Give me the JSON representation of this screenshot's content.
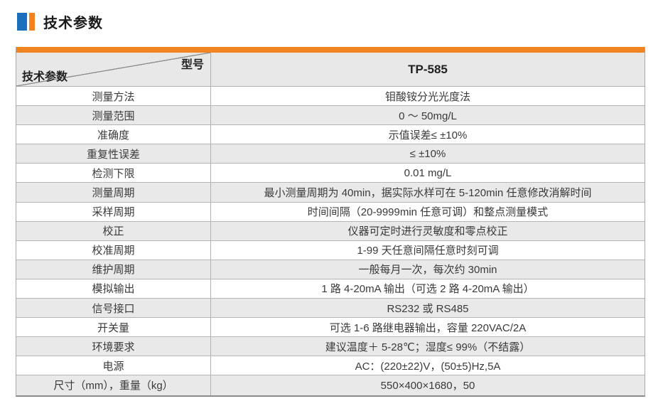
{
  "section": {
    "title": "技术参数",
    "accent_blue": "#1c6fb8",
    "accent_orange": "#f18421"
  },
  "table": {
    "corner": {
      "top_right_label": "型号",
      "bottom_left_label": "技术参数"
    },
    "model_header": "TP-585",
    "colors": {
      "top_bar": "#f18421",
      "header_bg": "#e8e8e8",
      "alt_row_bg": "#e9e9e9",
      "border": "#b0b0b0"
    },
    "rows": [
      {
        "label": "测量方法",
        "value": "钼酸铵分光光度法"
      },
      {
        "label": "测量范围",
        "value": "0 ～ 50mg/L"
      },
      {
        "label": "准确度",
        "value": "示值误差≤ ±10%"
      },
      {
        "label": "重复性误差",
        "value": "≤ ±10%"
      },
      {
        "label": "检测下限",
        "value": "0.01 mg/L"
      },
      {
        "label": "测量周期",
        "value": "最小测量周期为 40min，据实际水样可在 5-120min 任意修改消解时间"
      },
      {
        "label": "采样周期",
        "value": "时间间隔（20-9999min 任意可调）和整点测量模式"
      },
      {
        "label": "校正",
        "value": "仪器可定时进行灵敏度和零点校正"
      },
      {
        "label": "校准周期",
        "value": "1-99 天任意间隔任意时刻可调"
      },
      {
        "label": "维护周期",
        "value": "一般每月一次，每次约 30min"
      },
      {
        "label": "模拟输出",
        "value": "1 路 4-20mA 输出（可选 2 路 4-20mA 输出）"
      },
      {
        "label": "信号接口",
        "value": "RS232 或 RS485"
      },
      {
        "label": "开关量",
        "value": "可选 1-6 路继电器输出，容量 220VAC/2A"
      },
      {
        "label": "环境要求",
        "value": "建议温度＋ 5-28℃；湿度≤ 99%（不结露）"
      },
      {
        "label": "电源",
        "value": "AC：(220±22)V，(50±5)Hz,5A"
      },
      {
        "label": "尺寸（mm），重量（kg）",
        "value": "550×400×1680，50"
      }
    ]
  }
}
